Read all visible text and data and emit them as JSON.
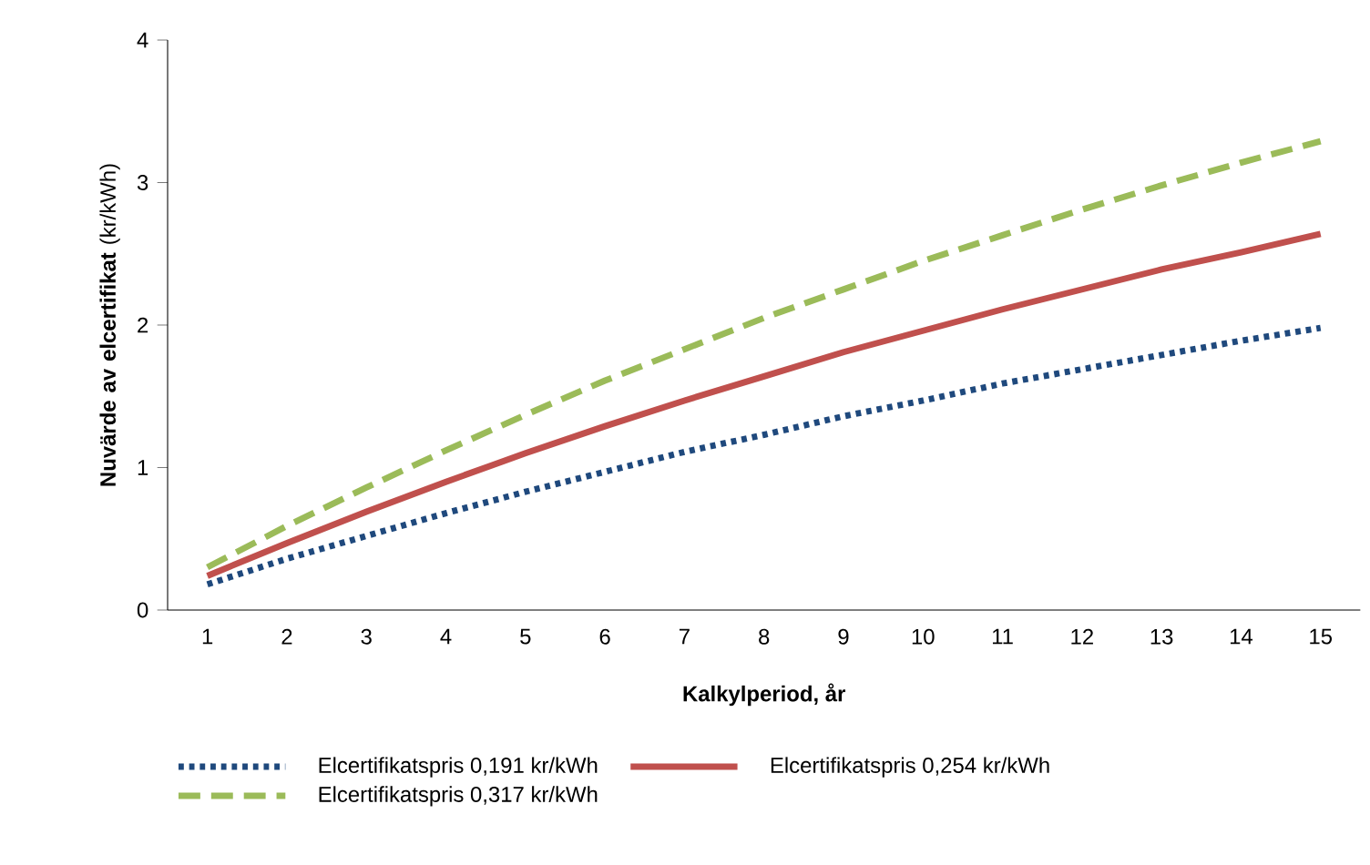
{
  "chart_data": {
    "type": "line",
    "xlabel": "Kalkylperiod, år",
    "ylabel": "**Nuvärde av elcertifikat** (kr/kWh)",
    "categories": [
      "1",
      "2",
      "3",
      "4",
      "5",
      "6",
      "7",
      "8",
      "9",
      "10",
      "11",
      "12",
      "13",
      "14",
      "15"
    ],
    "ylim": [
      0,
      4
    ],
    "yticks": [
      0,
      1,
      2,
      3,
      4
    ],
    "grid": false,
    "legend": "bottom",
    "series": [
      {
        "name": "Elcertifikatspris 0,191 kr/kWh",
        "color": "#1f497d",
        "line_style": "dotted",
        "values": [
          0.18,
          0.36,
          0.52,
          0.68,
          0.83,
          0.97,
          1.11,
          1.23,
          1.36,
          1.47,
          1.59,
          1.69,
          1.79,
          1.89,
          1.98
        ]
      },
      {
        "name": "Elcertifikatspris 0,254 kr/kWh",
        "color": "#c0504d",
        "line_style": "solid",
        "values": [
          0.24,
          0.47,
          0.69,
          0.9,
          1.1,
          1.29,
          1.47,
          1.64,
          1.81,
          1.96,
          2.11,
          2.25,
          2.39,
          2.51,
          2.64
        ]
      },
      {
        "name": "Elcertifikatspris 0,317 kr/kWh",
        "color": "#9bbb59",
        "line_style": "dashed",
        "values": [
          0.3,
          0.59,
          0.86,
          1.12,
          1.37,
          1.61,
          1.83,
          2.05,
          2.25,
          2.45,
          2.63,
          2.81,
          2.98,
          3.14,
          3.29
        ]
      }
    ]
  }
}
